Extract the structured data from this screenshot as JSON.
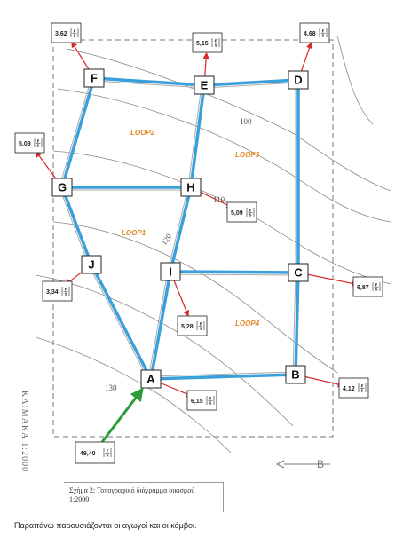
{
  "nodes": [
    {
      "id": "A",
      "label": "A"
    },
    {
      "id": "B",
      "label": "B"
    },
    {
      "id": "C",
      "label": "C"
    },
    {
      "id": "D",
      "label": "D"
    },
    {
      "id": "E",
      "label": "E"
    },
    {
      "id": "F",
      "label": "F"
    },
    {
      "id": "G",
      "label": "G"
    },
    {
      "id": "H",
      "label": "H"
    },
    {
      "id": "I",
      "label": "I"
    },
    {
      "id": "J",
      "label": "J"
    }
  ],
  "pipes": [
    [
      "F",
      "E"
    ],
    [
      "E",
      "D"
    ],
    [
      "D",
      "C"
    ],
    [
      "C",
      "B"
    ],
    [
      "B",
      "A"
    ],
    [
      "F",
      "G"
    ],
    [
      "G",
      "H"
    ],
    [
      "E",
      "H"
    ],
    [
      "H",
      "I"
    ],
    [
      "I",
      "A"
    ],
    [
      "I",
      "C"
    ],
    [
      "G",
      "J"
    ],
    [
      "J",
      "A"
    ]
  ],
  "flows": [
    {
      "node": "F",
      "value": "3,62"
    },
    {
      "node": "E",
      "value": "5,15"
    },
    {
      "node": "D",
      "value": "4,68"
    },
    {
      "node": "G",
      "value": "5,09"
    },
    {
      "node": "H",
      "value": "5,09"
    },
    {
      "node": "J",
      "value": "3,34"
    },
    {
      "node": "I",
      "value": "5,28"
    },
    {
      "node": "C",
      "value": "6,87"
    },
    {
      "node": "B",
      "value": "4,12"
    },
    {
      "node": "A",
      "value": "6,15"
    }
  ],
  "inflow": {
    "node": "A",
    "value": "49,40"
  },
  "flow_unit": {
    "numerator": "ℓ",
    "denominator": "s"
  },
  "loops": [
    "LOOP2",
    "LOOP3",
    "LOOP1",
    "LOOP4"
  ],
  "contours": [
    "100",
    "110",
    "120",
    "130"
  ],
  "map_text": {
    "scale": "ΚΛΙΜΑΚΑ 1:2000"
  },
  "caption": {
    "line1": "Σχήμα 2: Τοπογραφικό διάγραμμα οικισμού",
    "line2": "1:2000"
  },
  "footer": "Παραπάνω παρουσιάζονται οι αγωγοί και οι κόμβοι.",
  "colors": {
    "pipe": "#3aa0dc",
    "arrow": "#d42a2a",
    "inflow": "#2a9d3a",
    "loop_label": "#e08a2a"
  }
}
